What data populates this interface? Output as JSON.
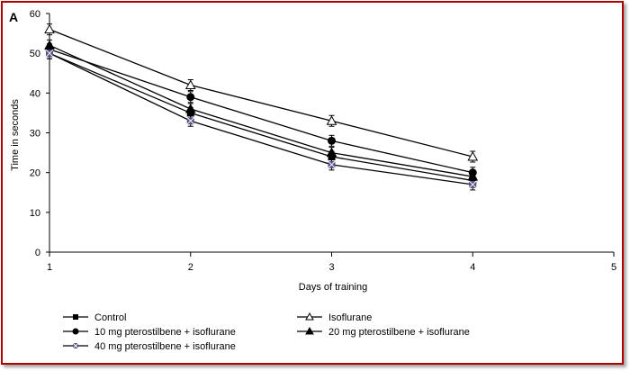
{
  "panel_label": "A",
  "colors": {
    "border": "#b00000",
    "line": "#000000",
    "cross": "#5a4f86"
  },
  "chart_data": {
    "type": "line",
    "title": "",
    "xlabel": "Days of training",
    "ylabel": "Time in seconds",
    "xlim": [
      1,
      5
    ],
    "ylim": [
      0,
      60
    ],
    "x_ticks": [
      "1",
      "2",
      "3",
      "4",
      "5"
    ],
    "y_ticks": [
      "0",
      "10",
      "20",
      "30",
      "40",
      "50",
      "60"
    ],
    "grid": false,
    "legend_position": "bottom",
    "x": [
      1,
      2,
      3,
      4
    ],
    "series": [
      {
        "name": "Control",
        "marker": "square",
        "values": [
          50,
          35,
          24,
          18
        ]
      },
      {
        "name": "Isoflurane",
        "marker": "open-triangle",
        "values": [
          56,
          42,
          33,
          24
        ]
      },
      {
        "name": "10 mg pterostilbene + isoflurane",
        "marker": "circle",
        "values": [
          51,
          39,
          28,
          20
        ]
      },
      {
        "name": "20 mg pterostilbene + isoflurane",
        "marker": "triangle",
        "values": [
          52,
          36,
          25,
          19
        ]
      },
      {
        "name": "40 mg pterostilbene + isoflurane",
        "marker": "x-square",
        "values": [
          50,
          33,
          22,
          17
        ]
      }
    ]
  }
}
